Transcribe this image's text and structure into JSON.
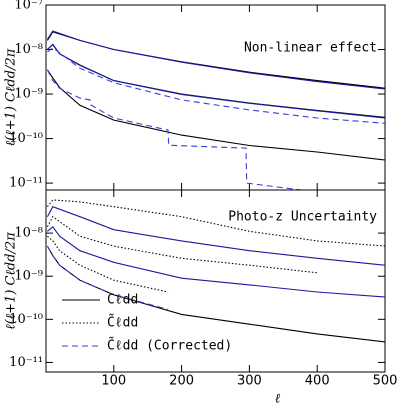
{
  "chart_data": [
    {
      "type": "line",
      "log_y": true,
      "annotation": "Non-linear effect",
      "y_label": "ℓ(ℓ+1) Cℓdd/2π",
      "xlim": [
        0,
        500
      ],
      "xticks": [
        100,
        200,
        300,
        400,
        500
      ],
      "ylim": [
        7e-12,
        1e-07
      ],
      "yticks": [
        {
          "value": 1e-07,
          "label": "10⁻⁷"
        },
        {
          "value": 1e-08,
          "label": "10⁻⁸"
        },
        {
          "value": 1e-09,
          "label": "10⁻⁹"
        },
        {
          "value": 1e-10,
          "label": "10⁻¹⁰"
        },
        {
          "value": 1e-11,
          "label": "10⁻¹¹"
        }
      ],
      "series": [
        {
          "style": "solid",
          "color": "#000000",
          "x": [
            2,
            10,
            50,
            100,
            200,
            300,
            400,
            500
          ],
          "values": [
            1.6e-08,
            2.5e-08,
            1.6e-08,
            1e-08,
            5.3e-09,
            3.1e-09,
            2e-09,
            1.35e-09
          ]
        },
        {
          "style": "solid",
          "color": "#1a1aa0",
          "x": [
            2,
            10,
            50,
            100,
            200,
            300,
            400,
            500
          ],
          "values": [
            1.7e-08,
            2.6e-08,
            1.6e-08,
            1e-08,
            5.2e-09,
            3e-09,
            1.9e-09,
            1.3e-09
          ]
        },
        {
          "style": "solid",
          "color": "#000000",
          "x": [
            2,
            10,
            20,
            50,
            100,
            200,
            300,
            400,
            500
          ],
          "values": [
            1e-08,
            1.3e-08,
            8e-09,
            4.5e-09,
            2e-09,
            1e-09,
            6.3e-10,
            4.3e-10,
            3e-10
          ]
        },
        {
          "style": "solid",
          "color": "#1a1aa0",
          "x": [
            2,
            10,
            20,
            50,
            100,
            200,
            300,
            400,
            500
          ],
          "values": [
            1e-08,
            1.3e-08,
            8e-09,
            4.4e-09,
            2e-09,
            9.8e-10,
            6.2e-10,
            4.2e-10,
            2.9e-10
          ]
        },
        {
          "style": "dashed",
          "color": "#3b3bdc",
          "x": [
            2,
            10,
            50,
            100,
            200,
            300,
            400,
            500
          ],
          "values": [
            8.8e-09,
            1.1e-08,
            3.8e-09,
            1.8e-09,
            7.4e-10,
            4.4e-10,
            2.9e-10,
            2.2e-10
          ]
        },
        {
          "style": "solid",
          "color": "#000000",
          "x": [
            2,
            10,
            20,
            50,
            100,
            200,
            300,
            400,
            500
          ],
          "values": [
            3.5e-09,
            2.3e-09,
            1.4e-09,
            5.6e-10,
            2.6e-10,
            1.2e-10,
            7e-11,
            5e-11,
            3.3e-11
          ]
        },
        {
          "style": "dashed",
          "color": "#3b3bdc",
          "x": [
            2,
            10,
            20,
            50,
            65,
            66,
            100,
            180,
            181,
            295,
            296,
            380
          ],
          "values": [
            3.5e-09,
            2e-09,
            1.35e-09,
            8.1e-10,
            7.4e-10,
            5.7e-10,
            2.9e-10,
            1.55e-10,
            7.1e-11,
            6.1e-11,
            1e-11,
            6.9e-12
          ]
        }
      ]
    },
    {
      "type": "line",
      "log_y": true,
      "annotation": "Photo-z Uncertainty",
      "y_label": "ℓ(ℓ+1) Cℓdd/2π",
      "x_label": "ℓ",
      "xlim": [
        0,
        500
      ],
      "xticks": [
        100,
        200,
        300,
        400,
        500
      ],
      "ylim": [
        6e-12,
        1e-07
      ],
      "yticks": [
        {
          "value": 1e-08,
          "label": "10⁻⁸"
        },
        {
          "value": 1e-09,
          "label": "10⁻⁹"
        },
        {
          "value": 1e-10,
          "label": "10⁻¹⁰"
        },
        {
          "value": 1e-11,
          "label": "10⁻¹¹"
        }
      ],
      "series": [
        {
          "style": "solid",
          "color": "#1a1aa0",
          "x": [
            2,
            10,
            50,
            100,
            200,
            300,
            400,
            500
          ],
          "values": [
            2.4e-08,
            4.1e-08,
            2.4e-08,
            1.2e-08,
            6.6e-09,
            3.9e-09,
            2.6e-09,
            1.8e-09
          ]
        },
        {
          "style": "dotted",
          "color": "#000000",
          "x": [
            2,
            10,
            50,
            100,
            200,
            300,
            400,
            500
          ],
          "values": [
            4.1e-08,
            5.9e-08,
            5.3e-08,
            4.1e-08,
            2.4e-08,
            1.1e-08,
            6.6e-09,
            5e-09
          ]
        },
        {
          "style": "solid",
          "color": "#1a1aa0",
          "x": [
            2,
            10,
            20,
            50,
            100,
            200,
            300,
            400,
            500
          ],
          "values": [
            1.1e-08,
            1.4e-08,
            8.5e-09,
            3.9e-09,
            2.1e-09,
            9e-10,
            6.3e-10,
            4.3e-10,
            3.3e-10
          ]
        },
        {
          "style": "dotted",
          "color": "#000000",
          "x": [
            2,
            10,
            50,
            100,
            200,
            300,
            400
          ],
          "values": [
            1.4e-08,
            2.4e-08,
            8.5e-09,
            5e-09,
            2.6e-09,
            1.8e-09,
            1.2e-09
          ]
        },
        {
          "style": "solid",
          "color": "#000000",
          "x": [
            2,
            10,
            20,
            50,
            100,
            150,
            200,
            300,
            400,
            500
          ],
          "values": [
            5e-09,
            3e-09,
            1.8e-09,
            8.1e-10,
            3.7e-10,
            2.2e-10,
            1.3e-10,
            7.7e-11,
            4.6e-11,
            3e-11
          ]
        },
        {
          "style": "dotted",
          "color": "#000000",
          "x": [
            2,
            10,
            20,
            50,
            100,
            180
          ],
          "values": [
            8.5e-09,
            6.6e-09,
            3.9e-09,
            1.8e-09,
            8.1e-10,
            4.3e-10
          ]
        },
        {
          "style": "dashed",
          "color": "#3b3bdc",
          "x": [
            2,
            10,
            20,
            50,
            100,
            180
          ],
          "values": [
            5e-09,
            3e-09,
            1.8e-09,
            8.1e-10,
            3.7e-10,
            1.7e-10
          ]
        }
      ],
      "legend": [
        {
          "name": "Cℓdd",
          "style": "solid",
          "color": "#000000"
        },
        {
          "name": "C̃ℓdd",
          "style": "dotted",
          "color": "#000000"
        },
        {
          "name": "C̃ℓdd (Corrected)",
          "style": "dashed",
          "color": "#3b3bdc"
        }
      ]
    }
  ]
}
